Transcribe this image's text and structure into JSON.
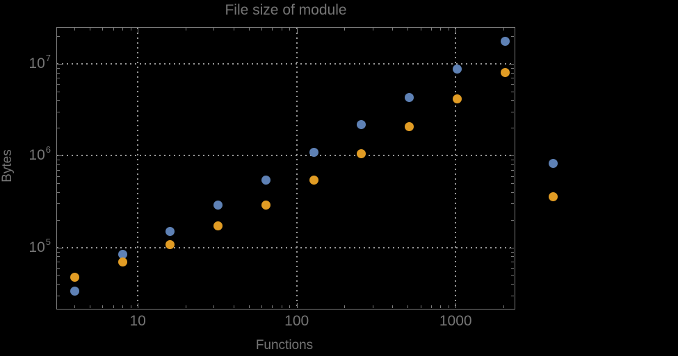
{
  "colors": {
    "background": "#000000",
    "frame": "#7d7d7d",
    "grid": "#9a9a9a",
    "text": "#757575",
    "series_blue": "#5e81b5",
    "series_orange": "#e19c24"
  },
  "chart_data": {
    "type": "scatter",
    "title": "File size of module",
    "xlabel": "Functions",
    "ylabel": "Bytes",
    "xscale": "log",
    "yscale": "log",
    "xlim": [
      3.07,
      2350
    ],
    "ylim": [
      21500,
      25000000
    ],
    "grid": {
      "style": "dotted",
      "x_values": [
        10,
        100,
        1000
      ],
      "y_values": [
        100000,
        1000000,
        10000000
      ]
    },
    "x_ticks": {
      "major": [
        10,
        100,
        1000
      ],
      "labels": [
        "10",
        "100",
        "1000"
      ]
    },
    "y_ticks": {
      "major": [
        100000,
        1000000,
        10000000
      ],
      "labels": [
        {
          "base": "10",
          "exp": "5"
        },
        {
          "base": "10",
          "exp": "6"
        },
        {
          "base": "10",
          "exp": "7"
        }
      ]
    },
    "legend": null,
    "note": "points at x=4096 are drawn outside the plot frame (no plot-range clipping)",
    "series": [
      {
        "name": "blue",
        "color": "#5e81b5",
        "x": [
          4,
          8,
          16,
          32,
          64,
          128,
          256,
          512,
          1024,
          2048,
          4096
        ],
        "y": [
          33500,
          84500,
          150000,
          288000,
          545000,
          1090000,
          2180000,
          4310000,
          8730000,
          17600000,
          818000
        ]
      },
      {
        "name": "orange",
        "color": "#e19c24",
        "x": [
          4,
          8,
          16,
          32,
          64,
          128,
          256,
          512,
          1024,
          2048,
          4096
        ],
        "y": [
          47800,
          69700,
          107000,
          171000,
          290000,
          545000,
          1040000,
          2050000,
          4110000,
          8070000,
          356000
        ]
      }
    ]
  }
}
